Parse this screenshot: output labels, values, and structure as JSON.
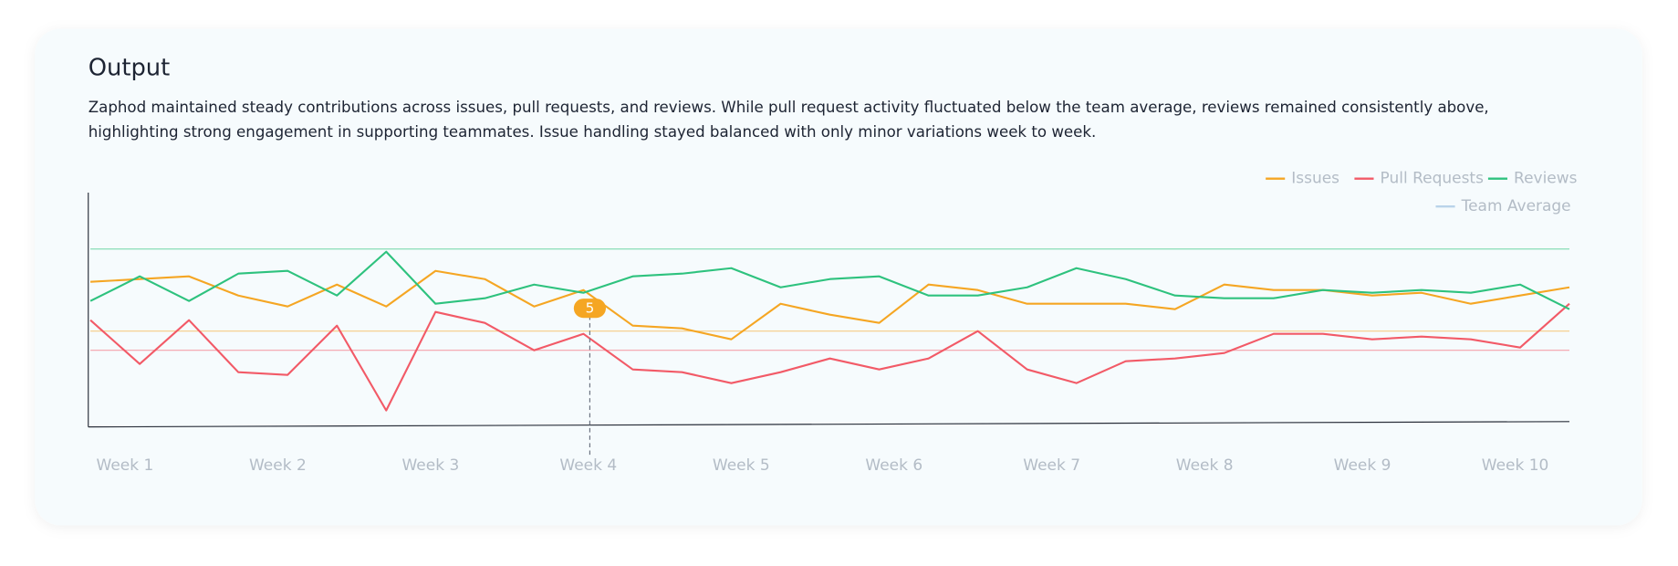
{
  "title": "Output",
  "description": "Zaphod maintained steady contributions across issues, pull requests, and reviews. While pull request activity fluctuated below the team average, reviews remained consistently above, highlighting strong engagement in supporting teammates. Issue handling stayed balanced with only minor variations week to week.",
  "chart_data": {
    "type": "line",
    "x": [
      0,
      1,
      2,
      3,
      4,
      5,
      6,
      7,
      8,
      9,
      10,
      11,
      12,
      13,
      14,
      15,
      16,
      17,
      18,
      19,
      20,
      21,
      22,
      23,
      24,
      25,
      26,
      27,
      28,
      29,
      30
    ],
    "xlim": [
      0,
      30
    ],
    "xticks": [
      {
        "value": 0.7,
        "label": "Week 1"
      },
      {
        "value": 3.8,
        "label": "Week 2"
      },
      {
        "value": 6.9,
        "label": "Week 3"
      },
      {
        "value": 10.1,
        "label": "Week 4"
      },
      {
        "value": 13.2,
        "label": "Week 5"
      },
      {
        "value": 16.3,
        "label": "Week 6"
      },
      {
        "value": 19.5,
        "label": "Week 7"
      },
      {
        "value": 22.6,
        "label": "Week 8"
      },
      {
        "value": 25.8,
        "label": "Week 9"
      },
      {
        "value": 28.9,
        "label": "Week 10"
      }
    ],
    "ylim": [
      0,
      8.6
    ],
    "series": [
      {
        "name": "Issues",
        "color": "#f5a623",
        "average": 3.5,
        "values": [
          5.3,
          5.4,
          5.5,
          4.8,
          4.4,
          5.2,
          4.4,
          5.7,
          5.4,
          4.4,
          5,
          3.7,
          3.6,
          3.2,
          4.5,
          4.1,
          3.8,
          5.2,
          5.0,
          4.5,
          4.5,
          4.5,
          4.3,
          5.2,
          5.0,
          5.0,
          4.8,
          4.9,
          4.5,
          4.8,
          5.1
        ]
      },
      {
        "name": "Pull Requests",
        "color": "#f25a67",
        "average": 2.8,
        "values": [
          3.9,
          2.3,
          3.9,
          2.0,
          1.9,
          3.7,
          0.6,
          4.2,
          3.8,
          2.8,
          3.4,
          2.1,
          2.0,
          1.6,
          2.0,
          2.5,
          2.1,
          2.5,
          3.5,
          2.1,
          1.6,
          2.4,
          2.5,
          2.7,
          3.4,
          3.4,
          3.2,
          3.3,
          3.2,
          2.9,
          4.5
        ]
      },
      {
        "name": "Reviews",
        "color": "#2ec27e",
        "average": 6.5,
        "values": [
          4.6,
          5.5,
          4.6,
          5.6,
          5.7,
          4.8,
          6.4,
          4.5,
          4.7,
          5.2,
          4.9,
          5.5,
          5.6,
          5.8,
          5.1,
          5.4,
          5.5,
          4.8,
          4.8,
          5.1,
          5.8,
          5.4,
          4.8,
          4.7,
          4.7,
          5.0,
          4.9,
          5.0,
          4.9,
          5.2,
          4.3
        ]
      }
    ],
    "reference": {
      "name": "Team Average",
      "color": "#b9d3ea"
    },
    "legend": "top-right"
  }
}
